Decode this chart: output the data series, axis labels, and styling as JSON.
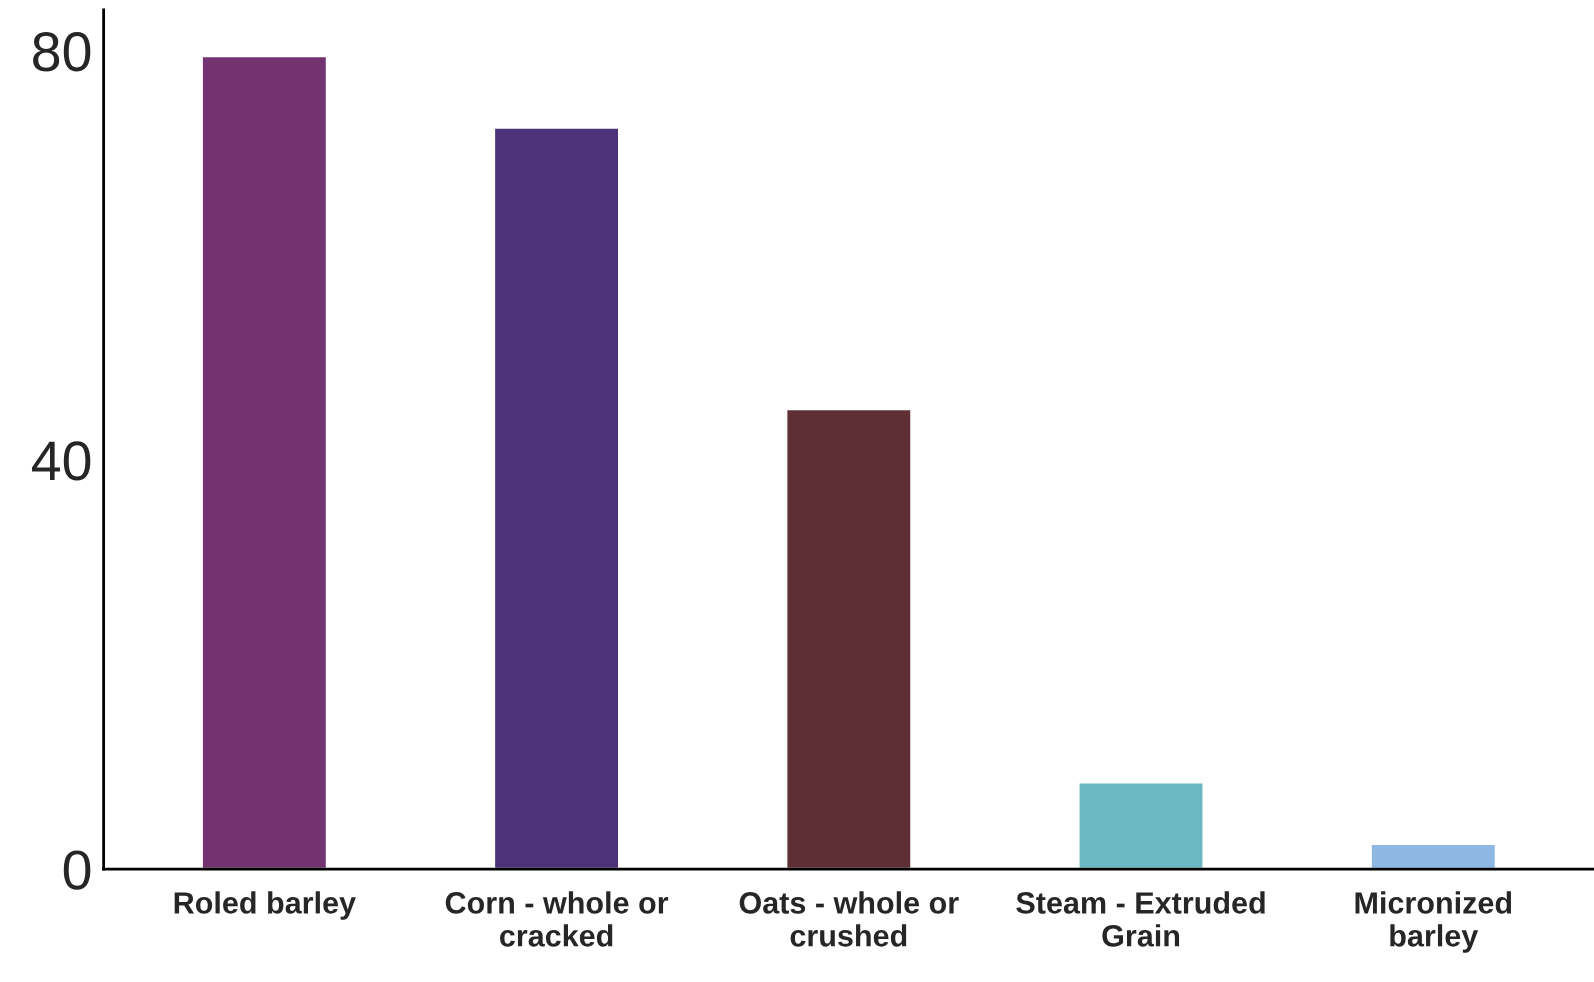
{
  "chart_data": {
    "type": "bar",
    "categories": [
      "Roled barley",
      "Corn - whole or cracked",
      "Oats - whole or crushed",
      "Steam - Extruded Grain",
      "Micronized barley"
    ],
    "values": [
      79.5,
      72.5,
      45,
      8.5,
      2.5
    ],
    "colors": [
      "#733371",
      "#4e3279",
      "#5e3035",
      "#6bb8c2",
      "#8cb8e3"
    ],
    "ylim": [
      0,
      84
    ],
    "yticks": [
      0,
      40,
      80
    ],
    "grid": false
  }
}
